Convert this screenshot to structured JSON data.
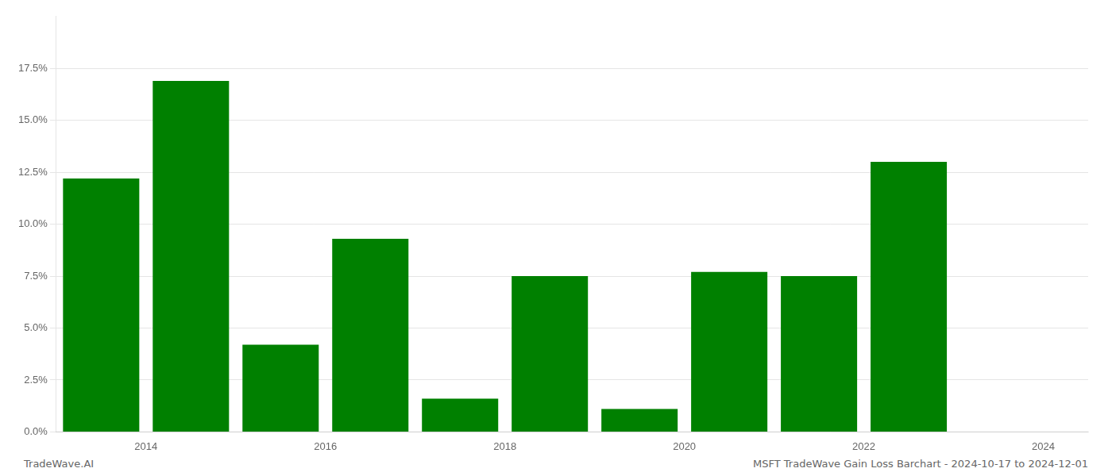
{
  "chart_data": {
    "type": "bar",
    "x": [
      2013.5,
      2014.5,
      2015.5,
      2016.5,
      2017.5,
      2018.5,
      2019.5,
      2020.5,
      2021.5,
      2022.5
    ],
    "values": [
      0.122,
      0.169,
      0.042,
      0.093,
      0.016,
      0.075,
      0.011,
      0.077,
      0.075,
      0.13
    ],
    "color": "#008000",
    "xlim": [
      2013.0,
      2024.5
    ],
    "xticks": [
      2014,
      2016,
      2018,
      2020,
      2022,
      2024
    ],
    "ylim": [
      0,
      0.2
    ],
    "yticks": [
      {
        "value": 0.0,
        "label": "0.0%"
      },
      {
        "value": 0.025,
        "label": "2.5%"
      },
      {
        "value": 0.05,
        "label": "5.0%"
      },
      {
        "value": 0.075,
        "label": "7.5%"
      },
      {
        "value": 0.1,
        "label": "10.0%"
      },
      {
        "value": 0.125,
        "label": "12.5%"
      },
      {
        "value": 0.15,
        "label": "15.0%"
      },
      {
        "value": 0.175,
        "label": "17.5%"
      }
    ],
    "grid": true,
    "annotations": [
      "TradeWave.AI",
      "MSFT TradeWave Gain Loss Barchart - 2024-10-17 to 2024-12-01"
    ]
  }
}
